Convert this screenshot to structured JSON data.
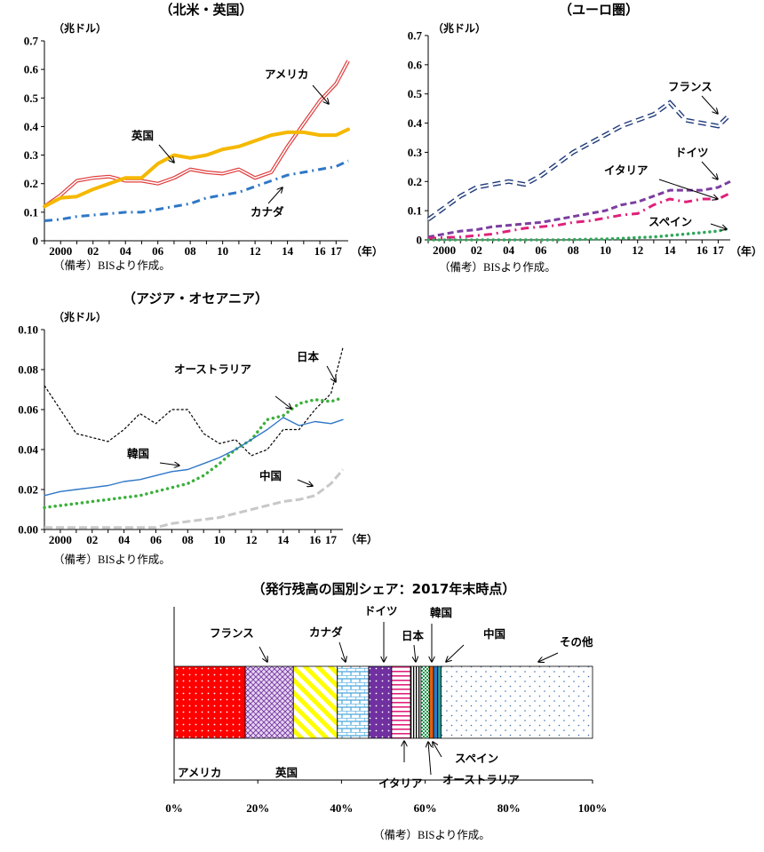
{
  "note": "（備考）BISより作成。",
  "chart_data": [
    {
      "type": "line",
      "title": "（北米・英国）",
      "unit": "（兆ドル）",
      "x_unit": "（年）",
      "ylim": [
        0,
        0.7
      ],
      "y_ticks": [
        "0",
        "0.1",
        "0.2",
        "0.3",
        "0.4",
        "0.5",
        "0.6",
        "0.7"
      ],
      "x_ticks": [
        "2000",
        "02",
        "04",
        "06",
        "08",
        "10",
        "12",
        "14",
        "16",
        "17"
      ],
      "x_tick_pos": [
        2000,
        2002,
        2004,
        2006,
        2008,
        2010,
        2012,
        2014,
        2016,
        2017
      ],
      "xlim": [
        1999,
        2017.75
      ],
      "series": [
        {
          "name": "アメリカ",
          "color": "#e03c3c",
          "style": "double",
          "x": [
            1999,
            2000,
            2001,
            2002,
            2003,
            2004,
            2005,
            2006,
            2007,
            2008,
            2009,
            2010,
            2011,
            2012,
            2013,
            2014,
            2015,
            2016,
            2017,
            2017.75
          ],
          "y": [
            0.12,
            0.16,
            0.21,
            0.22,
            0.225,
            0.21,
            0.21,
            0.2,
            0.22,
            0.25,
            0.24,
            0.235,
            0.25,
            0.22,
            0.24,
            0.33,
            0.41,
            0.49,
            0.55,
            0.63
          ]
        },
        {
          "name": "英国",
          "color": "#f5b800",
          "style": "thick",
          "x": [
            1999,
            2000,
            2001,
            2002,
            2003,
            2004,
            2005,
            2006,
            2007,
            2008,
            2009,
            2010,
            2011,
            2012,
            2013,
            2014,
            2015,
            2016,
            2017,
            2017.75
          ],
          "y": [
            0.12,
            0.15,
            0.155,
            0.18,
            0.2,
            0.22,
            0.22,
            0.27,
            0.3,
            0.29,
            0.3,
            0.32,
            0.33,
            0.35,
            0.37,
            0.38,
            0.38,
            0.37,
            0.37,
            0.39
          ]
        },
        {
          "name": "カナダ",
          "color": "#2f77c7",
          "style": "dashdot",
          "x": [
            1999,
            2000,
            2001,
            2002,
            2003,
            2004,
            2005,
            2006,
            2007,
            2008,
            2009,
            2010,
            2011,
            2012,
            2013,
            2014,
            2015,
            2016,
            2017,
            2017.75
          ],
          "y": [
            0.07,
            0.075,
            0.085,
            0.09,
            0.095,
            0.1,
            0.1,
            0.11,
            0.12,
            0.13,
            0.15,
            0.16,
            0.17,
            0.19,
            0.21,
            0.23,
            0.24,
            0.25,
            0.26,
            0.28
          ]
        }
      ],
      "annotations": [
        "アメリカ",
        "英国",
        "カナダ"
      ]
    },
    {
      "type": "line",
      "title": "（ユーロ圏）",
      "unit": "（兆ドル）",
      "x_unit": "（年）",
      "ylim": [
        0,
        0.7
      ],
      "y_ticks": [
        "0",
        "0.1",
        "0.2",
        "0.3",
        "0.4",
        "0.5",
        "0.6",
        "0.7"
      ],
      "x_ticks": [
        "2000",
        "02",
        "04",
        "06",
        "08",
        "10",
        "12",
        "14",
        "16",
        "17"
      ],
      "x_tick_pos": [
        2000,
        2002,
        2004,
        2006,
        2008,
        2010,
        2012,
        2014,
        2016,
        2017
      ],
      "xlim": [
        1999,
        2017.75
      ],
      "series": [
        {
          "name": "フランス",
          "color": "#1f3a7a",
          "style": "outlinedash",
          "x": [
            1999,
            2000,
            2001,
            2002,
            2003,
            2004,
            2005,
            2006,
            2007,
            2008,
            2009,
            2010,
            2011,
            2012,
            2013,
            2014,
            2015,
            2016,
            2017,
            2017.75
          ],
          "y": [
            0.07,
            0.11,
            0.15,
            0.18,
            0.19,
            0.2,
            0.19,
            0.22,
            0.26,
            0.3,
            0.33,
            0.36,
            0.39,
            0.41,
            0.43,
            0.47,
            0.41,
            0.4,
            0.39,
            0.43
          ]
        },
        {
          "name": "ドイツ",
          "color": "#7b3fa0",
          "style": "dash",
          "x": [
            1999,
            2000,
            2001,
            2002,
            2003,
            2004,
            2005,
            2006,
            2007,
            2008,
            2009,
            2010,
            2011,
            2012,
            2013,
            2014,
            2015,
            2016,
            2017,
            2017.75
          ],
          "y": [
            0.01,
            0.02,
            0.03,
            0.035,
            0.045,
            0.05,
            0.055,
            0.06,
            0.07,
            0.08,
            0.09,
            0.1,
            0.12,
            0.13,
            0.15,
            0.17,
            0.17,
            0.17,
            0.18,
            0.2
          ]
        },
        {
          "name": "イタリア",
          "color": "#e0207a",
          "style": "dashdot",
          "x": [
            1999,
            2000,
            2001,
            2002,
            2003,
            2004,
            2005,
            2006,
            2007,
            2008,
            2009,
            2010,
            2011,
            2012,
            2013,
            2014,
            2015,
            2016,
            2017,
            2017.75
          ],
          "y": [
            0.005,
            0.008,
            0.01,
            0.015,
            0.02,
            0.03,
            0.04,
            0.045,
            0.05,
            0.06,
            0.065,
            0.075,
            0.085,
            0.09,
            0.12,
            0.14,
            0.13,
            0.14,
            0.14,
            0.16
          ]
        },
        {
          "name": "スペイン",
          "color": "#2fa85a",
          "style": "dot",
          "x": [
            1999,
            2000,
            2001,
            2002,
            2003,
            2004,
            2005,
            2006,
            2007,
            2008,
            2009,
            2010,
            2011,
            2012,
            2013,
            2014,
            2015,
            2016,
            2017,
            2017.75
          ],
          "y": [
            0,
            0,
            0,
            0,
            0,
            0,
            0,
            0,
            0,
            0.001,
            0.002,
            0.003,
            0.005,
            0.008,
            0.01,
            0.015,
            0.02,
            0.025,
            0.03,
            0.04
          ]
        }
      ],
      "annotations": [
        "フランス",
        "ドイツ",
        "イタリア",
        "スペイン"
      ]
    },
    {
      "type": "line",
      "title": "（アジア・オセアニア）",
      "unit": "（兆ドル）",
      "x_unit": "（年）",
      "ylim": [
        0,
        0.1
      ],
      "y_ticks": [
        "0.00",
        "0.02",
        "0.04",
        "0.06",
        "0.08",
        "0.10"
      ],
      "x_ticks": [
        "2000",
        "02",
        "04",
        "06",
        "08",
        "10",
        "12",
        "14",
        "16",
        "17"
      ],
      "x_tick_pos": [
        2000,
        2002,
        2004,
        2006,
        2008,
        2010,
        2012,
        2014,
        2016,
        2017
      ],
      "xlim": [
        1999,
        2017.75
      ],
      "series": [
        {
          "name": "日本",
          "color": "#000000",
          "style": "finedash",
          "x": [
            1999,
            2000,
            2001,
            2002,
            2003,
            2004,
            2005,
            2006,
            2007,
            2008,
            2009,
            2010,
            2011,
            2012,
            2013,
            2014,
            2015,
            2016,
            2017,
            2017.75
          ],
          "y": [
            0.072,
            0.06,
            0.048,
            0.046,
            0.044,
            0.05,
            0.058,
            0.053,
            0.06,
            0.06,
            0.048,
            0.043,
            0.045,
            0.037,
            0.04,
            0.05,
            0.05,
            0.06,
            0.068,
            0.091
          ]
        },
        {
          "name": "オーストラリア",
          "color": "#3bb03b",
          "style": "dot",
          "x": [
            1999,
            2000,
            2001,
            2002,
            2003,
            2004,
            2005,
            2006,
            2007,
            2008,
            2009,
            2010,
            2011,
            2012,
            2013,
            2014,
            2015,
            2016,
            2017,
            2017.75
          ],
          "y": [
            0.011,
            0.012,
            0.013,
            0.014,
            0.015,
            0.016,
            0.017,
            0.019,
            0.021,
            0.023,
            0.027,
            0.033,
            0.04,
            0.045,
            0.055,
            0.057,
            0.063,
            0.065,
            0.064,
            0.066
          ]
        },
        {
          "name": "韓国",
          "color": "#2f77c7",
          "style": "solid",
          "x": [
            1999,
            2000,
            2001,
            2002,
            2003,
            2004,
            2005,
            2006,
            2007,
            2008,
            2009,
            2010,
            2011,
            2012,
            2013,
            2014,
            2015,
            2016,
            2017,
            2017.75
          ],
          "y": [
            0.017,
            0.019,
            0.02,
            0.021,
            0.022,
            0.024,
            0.025,
            0.027,
            0.029,
            0.03,
            0.033,
            0.036,
            0.04,
            0.045,
            0.05,
            0.056,
            0.052,
            0.054,
            0.053,
            0.055
          ]
        },
        {
          "name": "中国",
          "color": "#c8c8c8",
          "style": "thickdash",
          "x": [
            1999,
            2000,
            2001,
            2002,
            2003,
            2004,
            2005,
            2006,
            2007,
            2008,
            2009,
            2010,
            2011,
            2012,
            2013,
            2014,
            2015,
            2016,
            2017,
            2017.75
          ],
          "y": [
            0.001,
            0.001,
            0.001,
            0.001,
            0.001,
            0.001,
            0.001,
            0.001,
            0.003,
            0.004,
            0.005,
            0.006,
            0.008,
            0.01,
            0.012,
            0.014,
            0.015,
            0.017,
            0.023,
            0.03
          ]
        }
      ],
      "annotations": [
        "日本",
        "オーストラリア",
        "韓国",
        "中国"
      ]
    },
    {
      "type": "bar",
      "title": "（発行残高の国別シェア：2017年末時点）",
      "x_ticks": [
        "0%",
        "20%",
        "40%",
        "60%",
        "80%",
        "100%"
      ],
      "xlim": [
        0,
        100
      ],
      "segments": [
        {
          "name": "アメリカ",
          "share": 17,
          "color": "#ff0000",
          "pattern": "dots_white"
        },
        {
          "name": "フランス",
          "share": 11.5,
          "color": "#c9a5d8",
          "pattern": "crosshatch"
        },
        {
          "name": "英国",
          "share": 10.5,
          "color": "#ffff33",
          "pattern": "diagonal"
        },
        {
          "name": "カナダ",
          "share": 7.5,
          "color": "#9fd4f0",
          "pattern": "brick"
        },
        {
          "name": "ドイツ",
          "share": 5.5,
          "color": "#7030a0",
          "pattern": "dots_white"
        },
        {
          "name": "イタリア",
          "share": 4.5,
          "color": "#ffffff",
          "pattern": "hstripe_pink"
        },
        {
          "name": "日本",
          "share": 2.5,
          "color": "#ffffff",
          "pattern": "vstripe_black"
        },
        {
          "name": "オーストラリア",
          "share": 2,
          "color": "#ffffff",
          "pattern": "checker_green"
        },
        {
          "name": "スペイン",
          "share": 1,
          "color": "#e06010",
          "pattern": "solid"
        },
        {
          "name": "韓国",
          "share": 1,
          "color": "#2f77c7",
          "pattern": "solid"
        },
        {
          "name": "中国",
          "share": 0.8,
          "color": "#2aa0a0",
          "pattern": "solid"
        },
        {
          "name": "その他",
          "share": 36.2,
          "color": "#ffffff",
          "pattern": "dots_blue"
        }
      ]
    }
  ]
}
